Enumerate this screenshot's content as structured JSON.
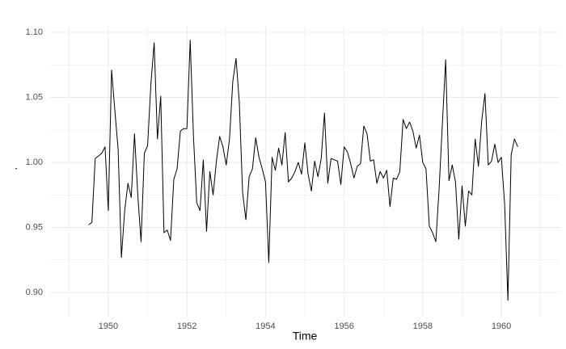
{
  "chart_data": {
    "type": "line",
    "x_label": "Time",
    "y_label": ".",
    "color": "#000000",
    "grid": true,
    "x": [
      1949.5,
      1949.5833,
      1949.6667,
      1949.75,
      1949.8333,
      1949.9167,
      1950,
      1950.0833,
      1950.1667,
      1950.25,
      1950.3333,
      1950.4167,
      1950.5,
      1950.5833,
      1950.6667,
      1950.75,
      1950.8333,
      1950.9167,
      1951,
      1951.0833,
      1951.1667,
      1951.25,
      1951.3333,
      1951.4167,
      1951.5,
      1951.5833,
      1951.6667,
      1951.75,
      1951.8333,
      1951.9167,
      1952,
      1952.0833,
      1952.1667,
      1952.25,
      1952.3333,
      1952.4167,
      1952.5,
      1952.5833,
      1952.6667,
      1952.75,
      1952.8333,
      1952.9167,
      1953,
      1953.0833,
      1953.1667,
      1953.25,
      1953.3333,
      1953.4167,
      1953.5,
      1953.5833,
      1953.6667,
      1953.75,
      1953.8333,
      1953.9167,
      1954,
      1954.0833,
      1954.1667,
      1954.25,
      1954.3333,
      1954.4167,
      1954.5,
      1954.5833,
      1954.6667,
      1954.75,
      1954.8333,
      1954.9167,
      1955,
      1955.0833,
      1955.1667,
      1955.25,
      1955.3333,
      1955.4167,
      1955.5,
      1955.5833,
      1955.6667,
      1955.75,
      1955.8333,
      1955.9167,
      1956,
      1956.0833,
      1956.1667,
      1956.25,
      1956.3333,
      1956.4167,
      1956.5,
      1956.5833,
      1956.6667,
      1956.75,
      1956.8333,
      1956.9167,
      1957,
      1957.0833,
      1957.1667,
      1957.25,
      1957.3333,
      1957.4167,
      1957.5,
      1957.5833,
      1957.6667,
      1957.75,
      1957.8333,
      1957.9167,
      1958,
      1958.0833,
      1958.1667,
      1958.25,
      1958.3333,
      1958.4167,
      1958.5,
      1958.5833,
      1958.6667,
      1958.75,
      1958.8333,
      1958.9167,
      1959,
      1959.0833,
      1959.1667,
      1959.25,
      1959.3333,
      1959.4167,
      1959.5,
      1959.5833,
      1959.6667,
      1959.75,
      1959.8333,
      1959.9167,
      1960,
      1960.0833,
      1960.1667,
      1960.25,
      1960.3333,
      1960.4167
    ],
    "values": [
      0.952,
      0.954,
      1.003,
      1.005,
      1.007,
      1.012,
      0.963,
      1.071,
      1.04,
      1.01,
      0.927,
      0.963,
      0.984,
      0.973,
      1.022,
      0.975,
      0.939,
      1.007,
      1.013,
      1.06,
      1.092,
      1.018,
      1.051,
      0.946,
      0.948,
      0.94,
      0.987,
      0.995,
      1.024,
      1.026,
      1.026,
      1.094,
      1.02,
      0.969,
      0.963,
      1.002,
      0.947,
      0.993,
      0.975,
      1.001,
      1.02,
      1.012,
      0.998,
      1.018,
      1.062,
      1.08,
      1.046,
      0.977,
      0.956,
      0.989,
      0.995,
      1.019,
      1.004,
      0.995,
      0.985,
      0.923,
      1.004,
      0.994,
      1.011,
      0.998,
      1.023,
      0.985,
      0.988,
      0.993,
      1.0,
      0.991,
      1.015,
      0.991,
      0.978,
      1.001,
      0.989,
      1.003,
      1.038,
      0.984,
      1.003,
      1.002,
      1.001,
      0.983,
      1.012,
      1.008,
      0.999,
      0.988,
      0.997,
      0.999,
      1.028,
      1.022,
      1.001,
      1.002,
      0.984,
      0.993,
      0.988,
      0.994,
      0.966,
      0.988,
      0.987,
      0.993,
      1.033,
      1.026,
      1.031,
      1.024,
      1.011,
      1.021,
      1.0,
      0.995,
      0.951,
      0.946,
      0.939,
      0.98,
      1.03,
      1.079,
      0.986,
      0.998,
      0.985,
      0.941,
      0.982,
      0.951,
      0.978,
      0.975,
      1.018,
      0.997,
      1.032,
      1.053,
      0.998,
      1.001,
      1.014,
      1.0,
      1.004,
      0.968,
      0.894,
      1.006,
      1.018,
      1.012
    ],
    "xlim": [
      1948.52,
      1961.48
    ],
    "xticks": [
      1950,
      1952,
      1954,
      1956,
      1958,
      1960
    ],
    "x_minor_ticks": [
      1949,
      1951,
      1953,
      1955,
      1957,
      1959,
      1961
    ],
    "ylim": [
      0.8814,
      1.105
    ],
    "yticks": [
      {
        "value": 0.9,
        "label": "0.90"
      },
      0.95,
      {
        "value": 1.0,
        "label": "1.00"
      },
      1.05,
      {
        "value": 1.1,
        "label": "1.10"
      }
    ],
    "y_minor_ticks": [
      0.925,
      0.975,
      1.025,
      1.075
    ]
  }
}
